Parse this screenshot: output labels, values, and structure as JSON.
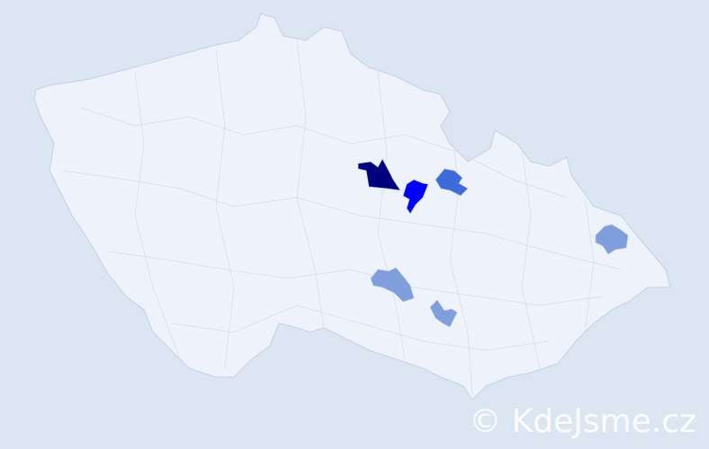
{
  "watermark": "© KdeJsme.cz",
  "colors": {
    "background": "#dce6f2",
    "district_default": "#eef2fa",
    "level_highest": "#00007f",
    "level_high": "#0000ff",
    "level_medium": "#3d6bdc",
    "level_low": "#7f9fdc"
  },
  "highlighted_districts": [
    {
      "level": "highest"
    },
    {
      "level": "high"
    },
    {
      "level": "medium"
    },
    {
      "level": "low"
    },
    {
      "level": "low"
    },
    {
      "level": "low"
    }
  ]
}
